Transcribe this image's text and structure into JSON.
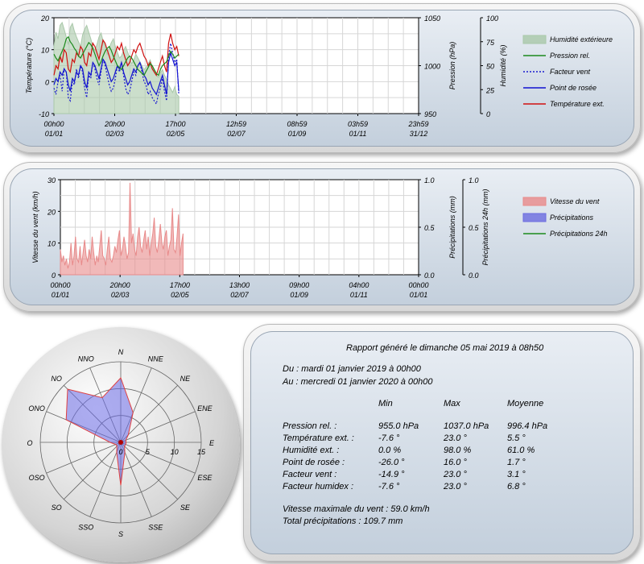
{
  "chart_data": [
    {
      "type": "line",
      "ylabel_left": "Température (°C)",
      "ylabel_right1": "Pression (hPa)",
      "ylabel_right2": "Humidité (%)",
      "y_left": {
        "ticks": [
          "20",
          "10",
          "0",
          "-10"
        ],
        "range": [
          -10,
          20
        ]
      },
      "y_right1": {
        "ticks": [
          "1050",
          "1000",
          "950"
        ],
        "range": [
          950,
          1050
        ]
      },
      "y_right2": {
        "ticks": [
          "100",
          "75",
          "50",
          "25",
          "0"
        ],
        "range": [
          0,
          100
        ]
      },
      "x_ticks": [
        {
          "time": "00h00",
          "date": "01/01"
        },
        {
          "time": "20h00",
          "date": "02/03"
        },
        {
          "time": "17h00",
          "date": "02/05"
        },
        {
          "time": "12h59",
          "date": "02/07"
        },
        {
          "time": "08h59",
          "date": "01/09"
        },
        {
          "time": "03h59",
          "date": "01/11"
        },
        {
          "time": "23h59",
          "date": "31/12"
        }
      ],
      "grid": true,
      "legend": [
        {
          "label": "Humidité extérieure",
          "kind": "area",
          "color": "#a9c8a9"
        },
        {
          "label": "Pression rel.",
          "kind": "line",
          "color": "#1c8a1c"
        },
        {
          "label": "Facteur vent",
          "kind": "dotted",
          "color": "#1a1ad0"
        },
        {
          "label": "Point de rosée",
          "kind": "line",
          "color": "#1010d0"
        },
        {
          "label": "Température ext.",
          "kind": "line",
          "color": "#d01010"
        }
      ],
      "data_days": 125,
      "series": [
        {
          "name": "Température ext.",
          "axis": "left",
          "values": [
            2,
            5,
            4,
            8,
            6,
            10,
            9,
            4,
            3,
            7,
            6,
            9,
            8,
            11,
            10,
            6,
            5,
            9,
            8,
            12,
            11,
            9,
            7,
            10,
            13,
            12,
            10,
            8,
            6,
            7,
            9,
            11,
            10,
            12,
            9,
            7,
            5,
            6,
            8,
            10,
            9,
            11,
            12,
            10,
            8,
            7,
            5,
            6,
            4,
            3,
            2,
            4,
            6,
            8,
            5,
            3,
            12,
            15,
            12,
            10,
            11,
            8
          ]
        },
        {
          "name": "Point de rosée",
          "axis": "left",
          "values": [
            -1,
            1,
            0,
            3,
            2,
            4,
            3,
            -1,
            -3,
            1,
            0,
            3,
            2,
            5,
            4,
            0,
            -2,
            3,
            2,
            6,
            5,
            3,
            1,
            4,
            7,
            6,
            4,
            2,
            0,
            1,
            3,
            5,
            4,
            6,
            3,
            1,
            -1,
            0,
            2,
            4,
            3,
            5,
            6,
            4,
            2,
            1,
            -1,
            0,
            -2,
            -3,
            -4,
            -2,
            0,
            2,
            -1,
            -4,
            6,
            9,
            7,
            5,
            6,
            -3
          ]
        },
        {
          "name": "Facteur vent",
          "axis": "left",
          "values": [
            -2,
            -4,
            0,
            2,
            -3,
            4,
            3,
            -5,
            -6,
            0,
            -1,
            4,
            1,
            5,
            3,
            -2,
            -5,
            2,
            1,
            6,
            4,
            1,
            -1,
            3,
            7,
            5,
            2,
            -1,
            -3,
            -2,
            1,
            5,
            3,
            6,
            2,
            -2,
            -4,
            -3,
            0,
            3,
            2,
            5,
            6,
            3,
            0,
            -1,
            -4,
            -3,
            -5,
            -6,
            -7,
            -4,
            -2,
            1,
            -3,
            -6,
            8,
            12,
            9,
            6,
            7,
            -4
          ]
        },
        {
          "name": "Pression rel.",
          "axis": "right1",
          "values": [
            1012,
            1008,
            1005,
            1010,
            1015,
            1020,
            1028,
            1030,
            1025,
            1022,
            1018,
            1015,
            1010,
            1008,
            1012,
            1016,
            1020,
            1024,
            1022,
            1018,
            1012,
            1006,
            1000,
            1004,
            1010,
            1015,
            1018,
            1020,
            1016,
            1010,
            1005,
            1000,
            998,
            996,
            1000,
            1004,
            1008,
            1010,
            1008,
            1004,
            1000,
            996,
            994,
            992,
            990,
            994,
            998,
            1002,
            1000,
            996,
            992,
            990,
            996,
            1000,
            1002,
            1004,
            1010,
            1015,
            1012,
            1008,
            1010,
            1012
          ]
        },
        {
          "name": "Humidité extérieure",
          "axis": "right2",
          "values": [
            70,
            85,
            78,
            92,
            95,
            88,
            80,
            72,
            90,
            94,
            86,
            80,
            75,
            70,
            82,
            88,
            92,
            85,
            78,
            70,
            66,
            72,
            80,
            84,
            76,
            70,
            62,
            68,
            74,
            78,
            70,
            64,
            58,
            60,
            66,
            70,
            64,
            58,
            52,
            56,
            62,
            58,
            54,
            50,
            46,
            48,
            52,
            56,
            50,
            44,
            40,
            38,
            42,
            46,
            40,
            36,
            30,
            26,
            22,
            28,
            20,
            18
          ]
        }
      ]
    },
    {
      "type": "area",
      "ylabel_left": "Vitesse du vent (km/h)",
      "ylabel_right1": "Précipitations (mm)",
      "ylabel_right2": "Précipitations 24h (mm)",
      "y_left": {
        "ticks": [
          "30",
          "20",
          "10",
          "0"
        ],
        "range": [
          0,
          30
        ]
      },
      "y_right1": {
        "ticks": [
          "1.0",
          "0.5",
          "0.0"
        ],
        "range": [
          0,
          1
        ]
      },
      "y_right2": {
        "ticks": [
          "1.0",
          "0.5",
          "0.0"
        ],
        "range": [
          0,
          1
        ]
      },
      "x_ticks": [
        {
          "time": "00h00",
          "date": "01/01"
        },
        {
          "time": "20h00",
          "date": "02/03"
        },
        {
          "time": "17h00",
          "date": "02/05"
        },
        {
          "time": "13h00",
          "date": "02/07"
        },
        {
          "time": "09h00",
          "date": "01/09"
        },
        {
          "time": "04h00",
          "date": "01/11"
        },
        {
          "time": "00h00",
          "date": "01/01"
        }
      ],
      "grid": true,
      "legend": [
        {
          "label": "Vitesse du vent",
          "kind": "area",
          "color": "#e88a8a"
        },
        {
          "label": "Précipitations",
          "kind": "area",
          "color": "#6b6be0"
        },
        {
          "label": "Précipitations 24h",
          "kind": "line",
          "color": "#1c8a1c"
        }
      ],
      "data_days": 125,
      "series": [
        {
          "name": "Vitesse du vent",
          "axis": "left",
          "values": [
            8,
            4,
            6,
            3,
            5,
            2,
            4,
            10,
            3,
            6,
            12,
            5,
            4,
            9,
            3,
            7,
            11,
            6,
            4,
            8,
            5,
            12,
            7,
            3,
            6,
            4,
            9,
            14,
            6,
            5,
            3,
            8,
            12,
            5,
            4,
            6,
            9,
            7,
            11,
            14,
            6,
            8,
            12,
            9,
            5,
            7,
            29,
            10,
            13,
            8,
            6,
            12,
            15,
            9,
            7,
            11,
            14,
            8,
            12,
            6,
            10,
            13,
            18,
            9,
            7,
            11,
            16,
            10,
            8,
            12,
            14,
            6,
            9,
            11,
            21,
            8,
            7,
            12,
            19,
            6,
            10,
            13
          ]
        },
        {
          "name": "Précipitations",
          "axis": "right1",
          "values": []
        },
        {
          "name": "Précipitations 24h",
          "axis": "right2",
          "values": []
        }
      ]
    },
    {
      "type": "radar",
      "directions": [
        "N",
        "NNE",
        "NE",
        "ENE",
        "E",
        "ESE",
        "SE",
        "SSE",
        "S",
        "SSO",
        "SO",
        "OSO",
        "O",
        "ONO",
        "NO",
        "NNO"
      ],
      "radial_ticks": [
        "0",
        "5",
        "10",
        "15"
      ],
      "rmax": 15,
      "values": [
        12,
        6,
        2,
        1,
        1,
        1,
        1,
        2,
        8,
        2,
        1,
        1,
        2,
        11,
        14,
        9
      ],
      "series_name": ""
    }
  ],
  "report": {
    "title": "Rapport généré le dimanche 05 mai 2019 à 08h50",
    "from": "Du : mardi 01 janvier 2019 à 00h00",
    "to": "Au : mercredi 01 janvier 2020 à 00h00",
    "headers": [
      "Min",
      "Max",
      "Moyenne"
    ],
    "rows": [
      {
        "label": "Pression rel. :",
        "min": "955.0 hPa",
        "max": "1037.0 hPa",
        "avg": "996.4 hPa"
      },
      {
        "label": "Température ext. :",
        "min": "-7.6 °",
        "max": "23.0 °",
        "avg": "5.5 °"
      },
      {
        "label": "Humidité ext. :",
        "min": "0.0 %",
        "max": "98.0 %",
        "avg": "61.0 %"
      },
      {
        "label": "Point de rosée :",
        "min": "-26.0 °",
        "max": "16.0 °",
        "avg": "1.7 °"
      },
      {
        "label": "Facteur vent :",
        "min": "-14.9 °",
        "max": "23.0 °",
        "avg": "3.1 °"
      },
      {
        "label": "Facteur humidex :",
        "min": "-7.6 °",
        "max": "23.0 °",
        "avg": "6.8 °"
      }
    ],
    "max_wind": "Vitesse maximale du vent : 59.0 km/h",
    "total_rain": "Total précipitations : 109.7 mm"
  }
}
